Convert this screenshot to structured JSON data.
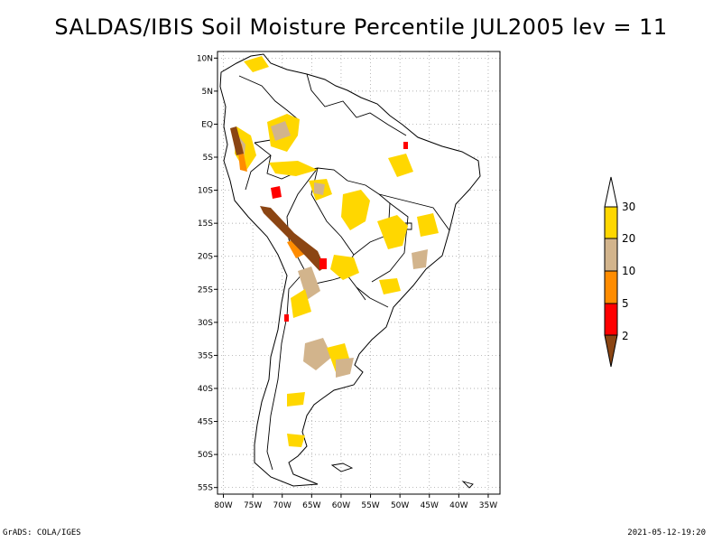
{
  "title": "SALDAS/IBIS Soil Moisture Percentile JUL2005 lev = 11",
  "footer": {
    "left": "GrADS: COLA/IGES",
    "right": "2021-05-12-19:20"
  },
  "map": {
    "lon_range": [
      -81,
      -33
    ],
    "lat_range": [
      -56,
      11
    ],
    "xticks": [
      {
        "value": -80,
        "label": "80W"
      },
      {
        "value": -75,
        "label": "75W"
      },
      {
        "value": -70,
        "label": "70W"
      },
      {
        "value": -65,
        "label": "65W"
      },
      {
        "value": -60,
        "label": "60W"
      },
      {
        "value": -55,
        "label": "55W"
      },
      {
        "value": -50,
        "label": "50W"
      },
      {
        "value": -45,
        "label": "45W"
      },
      {
        "value": -40,
        "label": "40W"
      },
      {
        "value": -35,
        "label": "35W"
      }
    ],
    "yticks": [
      {
        "value": 10,
        "label": "10N"
      },
      {
        "value": 5,
        "label": "5N"
      },
      {
        "value": 0,
        "label": "EQ"
      },
      {
        "value": -5,
        "label": "5S"
      },
      {
        "value": -10,
        "label": "10S"
      },
      {
        "value": -15,
        "label": "15S"
      },
      {
        "value": -20,
        "label": "20S"
      },
      {
        "value": -25,
        "label": "25S"
      },
      {
        "value": -30,
        "label": "30S"
      },
      {
        "value": -35,
        "label": "35S"
      },
      {
        "value": -40,
        "label": "40S"
      },
      {
        "value": -45,
        "label": "45S"
      },
      {
        "value": -50,
        "label": "50S"
      },
      {
        "value": -55,
        "label": "55S"
      }
    ],
    "grid": true
  },
  "legend": {
    "colors": {
      "below_2": "#8b4513",
      "2_5": "#ff0000",
      "5_10": "#ff8c00",
      "10_20": "#d2b48c",
      "20_30": "#ffd700",
      "above_30": "#ffffff"
    },
    "labels": [
      "2",
      "5",
      "10",
      "20",
      "30"
    ]
  }
}
